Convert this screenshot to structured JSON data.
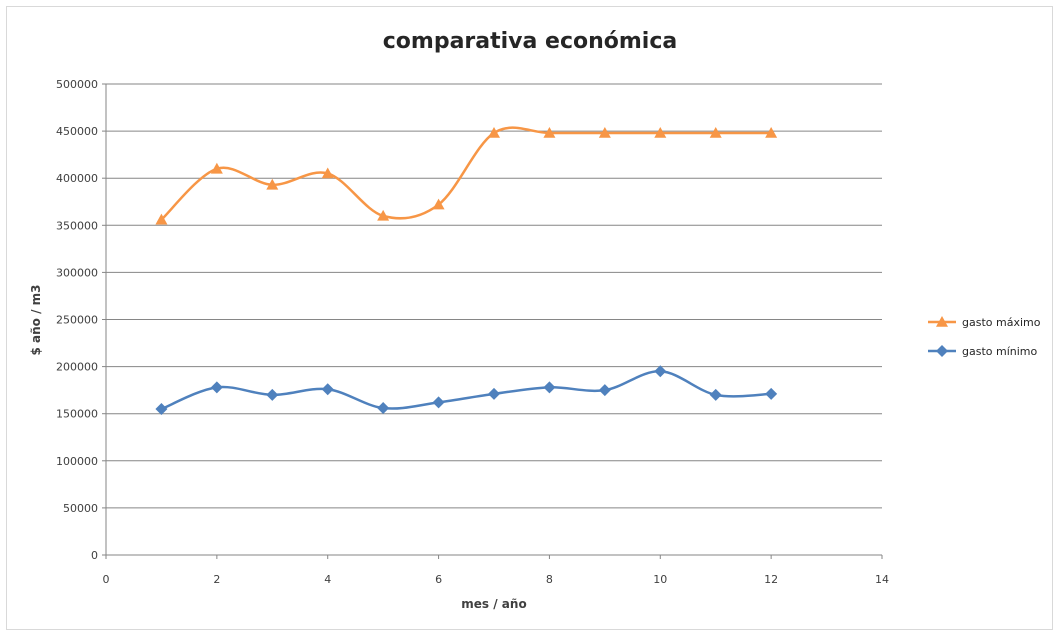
{
  "chart_data": {
    "type": "scatter",
    "title": "comparativa económica",
    "xlabel": "mes / año",
    "ylabel": "$ año / m3",
    "xlim": [
      0,
      14
    ],
    "ylim": [
      0,
      500000
    ],
    "xticks": [
      0,
      2,
      4,
      6,
      8,
      10,
      12,
      14
    ],
    "yticks": [
      0,
      50000,
      100000,
      150000,
      200000,
      250000,
      300000,
      350000,
      400000,
      450000,
      500000
    ],
    "grid": "horizontal",
    "smooth": true,
    "legend_position": "right",
    "series": [
      {
        "name": "gasto máximo",
        "color": "#f79646",
        "marker": "triangle",
        "x": [
          1,
          2,
          3,
          4,
          5,
          6,
          7,
          8,
          9,
          10,
          11,
          12
        ],
        "y": [
          356000,
          410000,
          393000,
          405000,
          360000,
          372000,
          448000,
          448000,
          448000,
          448000,
          448000,
          448000
        ]
      },
      {
        "name": "gasto mínimo",
        "color": "#4f81bd",
        "marker": "diamond",
        "x": [
          1,
          2,
          3,
          4,
          5,
          6,
          7,
          8,
          9,
          10,
          11,
          12
        ],
        "y": [
          155000,
          178000,
          170000,
          176000,
          156000,
          162000,
          171000,
          178000,
          175000,
          195000,
          170000,
          171000
        ]
      }
    ]
  }
}
